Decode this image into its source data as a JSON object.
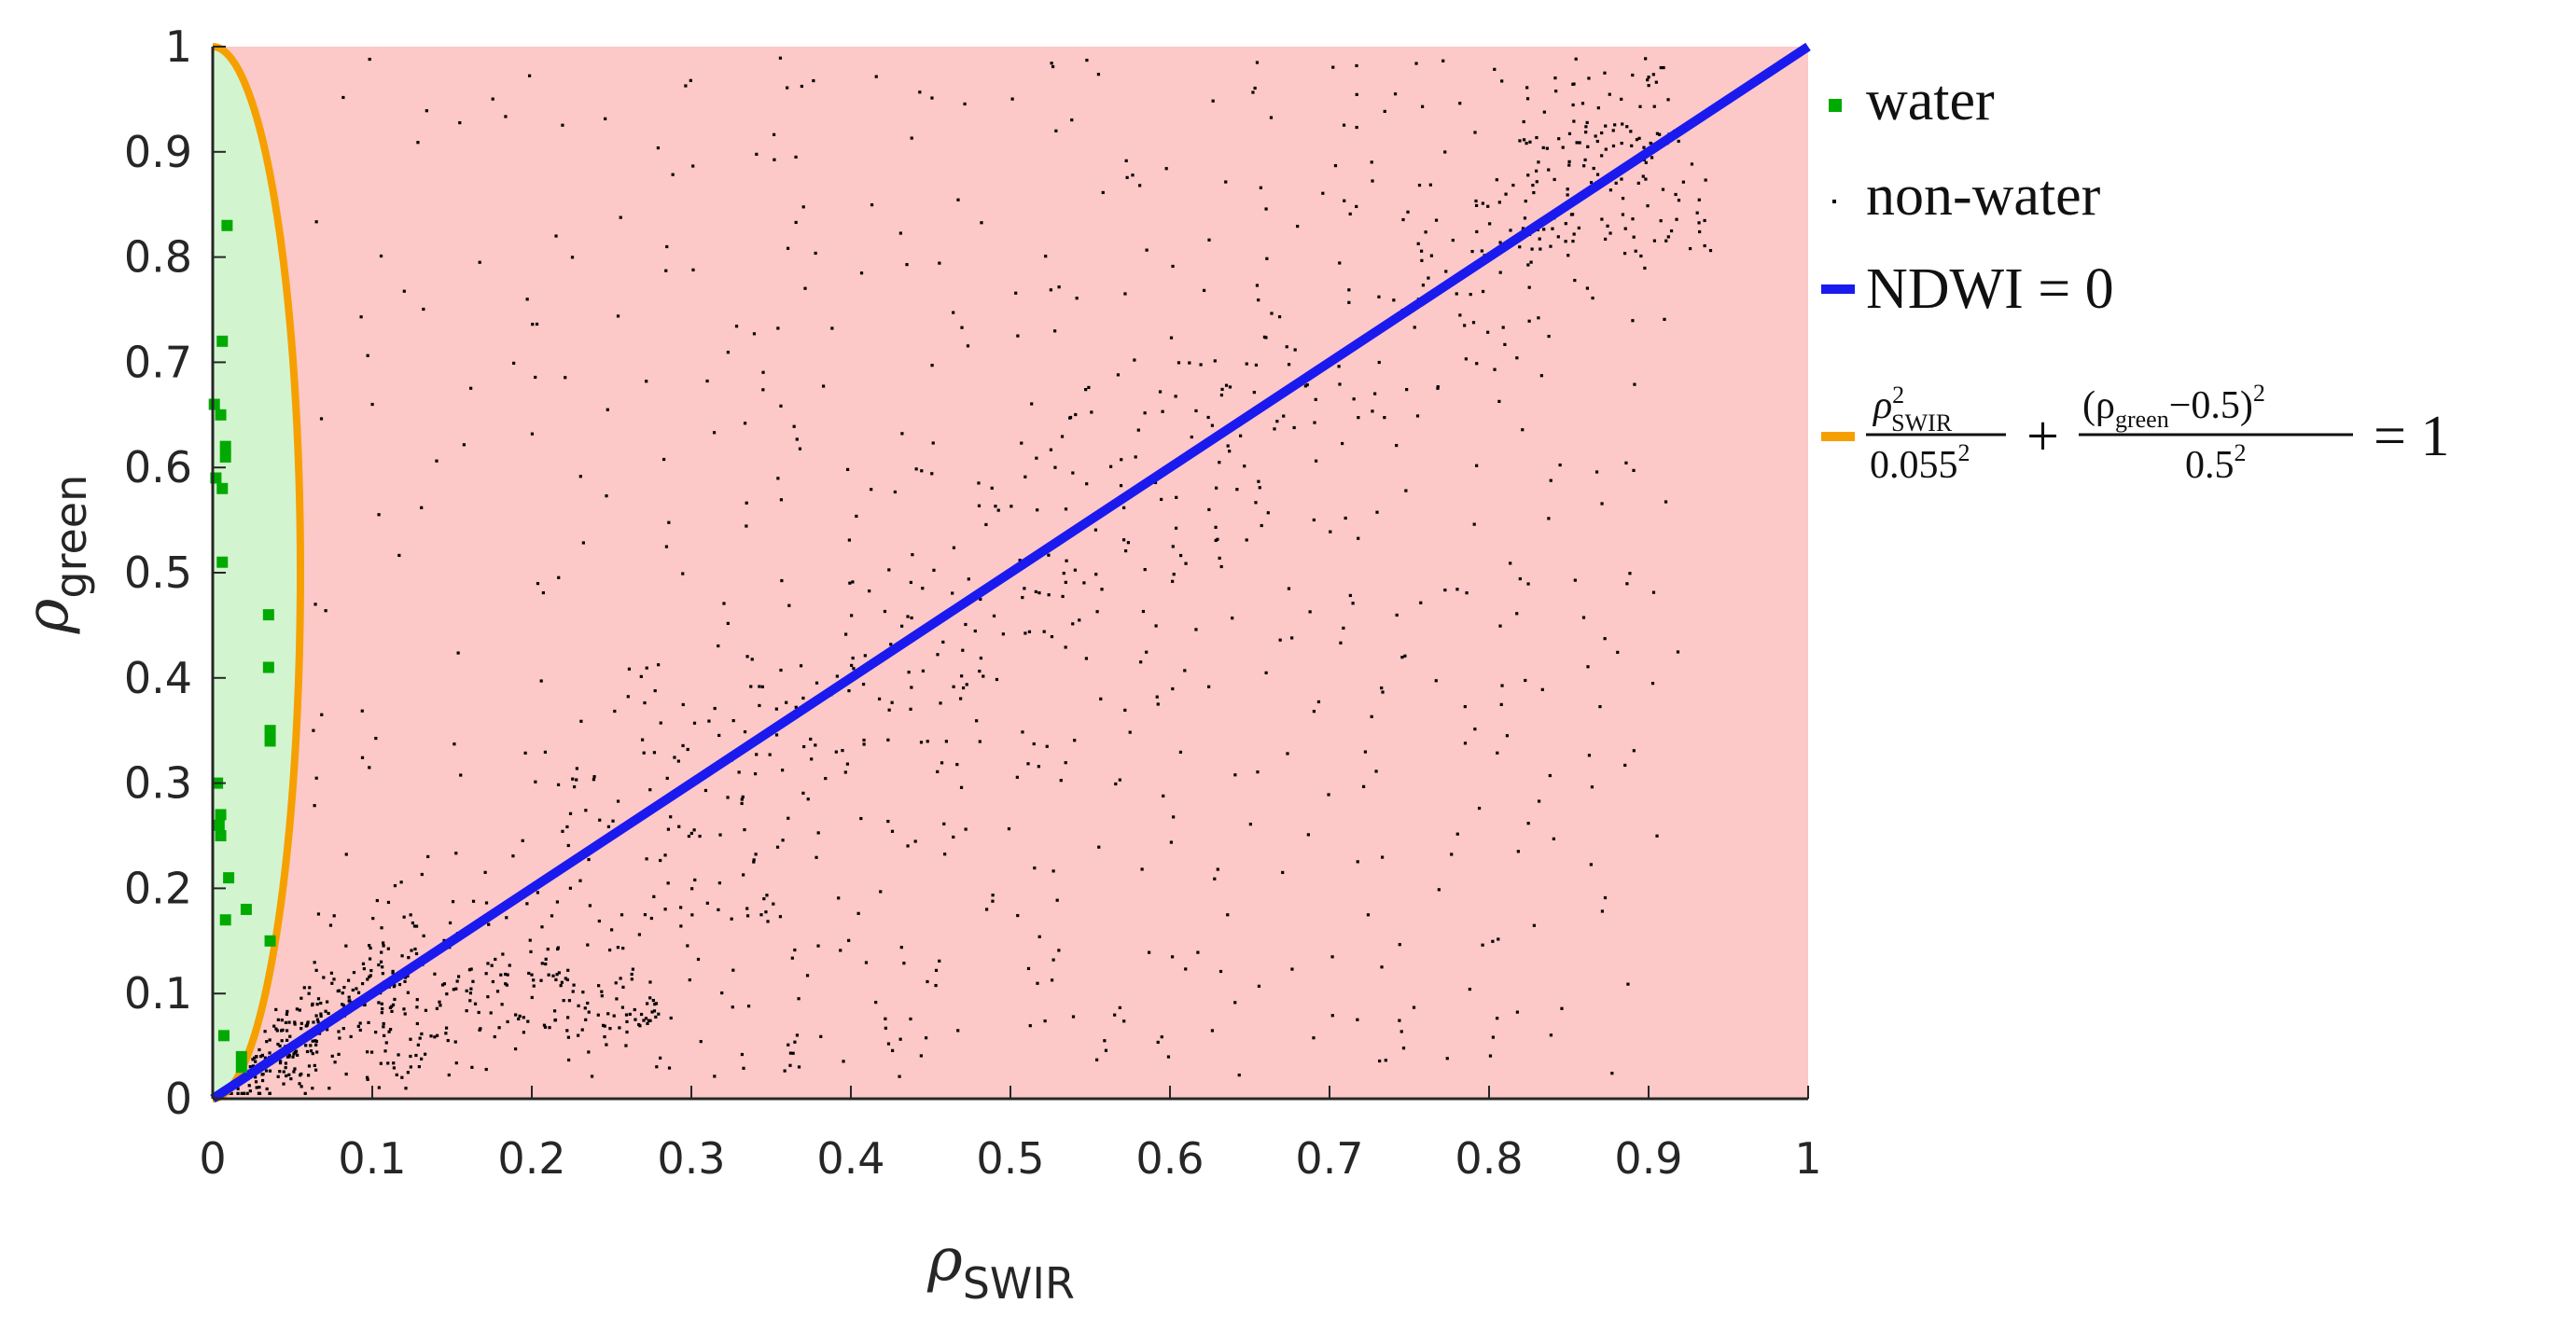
{
  "chart_data": {
    "type": "scatter",
    "xlabel": {
      "symbol": "ρ",
      "subscript": "SWIR"
    },
    "ylabel": {
      "symbol": "ρ",
      "subscript": "green"
    },
    "xlim": [
      0,
      1
    ],
    "ylim": [
      0,
      1
    ],
    "x_ticks": [
      0,
      0.1,
      0.2,
      0.3,
      0.4,
      0.5,
      0.6,
      0.7,
      0.8,
      0.9,
      1
    ],
    "y_ticks": [
      0,
      0.1,
      0.2,
      0.3,
      0.4,
      0.5,
      0.6,
      0.7,
      0.8,
      0.9,
      1
    ],
    "x_tick_labels": [
      "0",
      "0.1",
      "0.2",
      "0.3",
      "0.4",
      "0.5",
      "0.6",
      "0.7",
      "0.8",
      "0.9",
      "1"
    ],
    "y_tick_labels": [
      "0",
      "0.1",
      "0.2",
      "0.3",
      "0.4",
      "0.5",
      "0.6",
      "0.7",
      "0.8",
      "0.9",
      "1"
    ],
    "grid": false,
    "legend_position": "outside-right",
    "regions": [
      {
        "name": "non-water region",
        "color": "#fcc8c8"
      },
      {
        "name": "water region (inside ellipse)",
        "color": "#d2f5d0"
      }
    ],
    "series": [
      {
        "name": "water",
        "kind": "scatter",
        "color": "#00aa00",
        "points": [
          [
            0.001,
            0.66
          ],
          [
            0.002,
            0.59
          ],
          [
            0.003,
            0.3
          ],
          [
            0.004,
            0.26
          ],
          [
            0.005,
            0.27
          ],
          [
            0.005,
            0.65
          ],
          [
            0.005,
            0.25
          ],
          [
            0.006,
            0.72
          ],
          [
            0.006,
            0.58
          ],
          [
            0.006,
            0.51
          ],
          [
            0.007,
            0.06
          ],
          [
            0.008,
            0.62
          ],
          [
            0.008,
            0.61
          ],
          [
            0.008,
            0.17
          ],
          [
            0.009,
            0.83
          ],
          [
            0.01,
            0.21
          ],
          [
            0.018,
            0.04
          ],
          [
            0.018,
            0.03
          ],
          [
            0.021,
            0.18
          ],
          [
            0.035,
            0.46
          ],
          [
            0.035,
            0.41
          ],
          [
            0.036,
            0.35
          ],
          [
            0.036,
            0.34
          ],
          [
            0.036,
            0.15
          ]
        ]
      },
      {
        "name": "non-water",
        "kind": "scatter",
        "color": "#000000",
        "generator": "scattered reflectance samples, ~1800 points, densest near ρSWIR≈0.05, ρgreen≈0.05"
      },
      {
        "name": "NDWI = 0",
        "kind": "line",
        "color": "#1a1aee",
        "points": [
          [
            0,
            0
          ],
          [
            1,
            1
          ]
        ]
      },
      {
        "name": "ellipse",
        "kind": "ellipse",
        "color": "#f5a000",
        "center": [
          0,
          0.5
        ],
        "radii": [
          0.055,
          0.5
        ]
      }
    ],
    "legend": [
      {
        "label": "water",
        "marker": "dot",
        "color": "#00aa00"
      },
      {
        "label": "non-water",
        "marker": "small-dot",
        "color": "#000000"
      },
      {
        "label": "NDWI = 0",
        "marker": "line",
        "color": "#1a1aee"
      },
      {
        "label": "ρ²SWIR / 0.055² + (ρgreen − 0.5)² / 0.5² = 1",
        "marker": "line",
        "color": "#f5a000",
        "parts": {
          "rho": "ρ",
          "sq": "2",
          "swir": "SWIR",
          "den1": "0.055",
          "plus": "+",
          "num2": "(ρ",
          "green": "green",
          "num2b": "−0.5)",
          "den2": "0.5",
          "eq": "= 1"
        }
      }
    ]
  }
}
